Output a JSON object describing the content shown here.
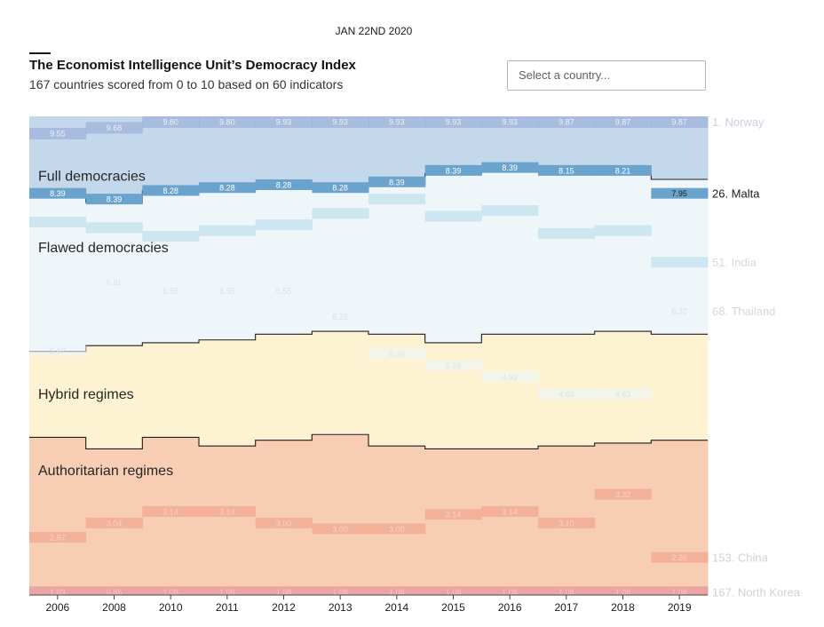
{
  "header": {
    "dateline": "JAN 22ND 2020",
    "title": "The Economist Intelligence Unit’s Democracy Index",
    "subtitle": "167 countries scored from 0 to 10 based on 60 indicators"
  },
  "country_select": {
    "placeholder": "Select a country..."
  },
  "chart_data": {
    "type": "area",
    "xlabel": "",
    "ylabel": "",
    "categories": [
      "2006",
      "2008",
      "2010",
      "2011",
      "2012",
      "2013",
      "2014",
      "2015",
      "2016",
      "2017",
      "2018",
      "2019"
    ],
    "n_countries": 167,
    "regimes": [
      {
        "name": "Full democracies",
        "color": "#c3d8ea",
        "ranks_in_category": [
          28,
          30,
          26,
          25,
          25,
          25,
          24,
          20,
          19,
          19,
          20,
          22
        ]
      },
      {
        "name": "Flawed democracies",
        "color": "#eef6fa",
        "ranks_in_category": [
          54,
          50,
          53,
          53,
          51,
          50,
          52,
          59,
          57,
          57,
          55,
          54
        ]
      },
      {
        "name": "Hybrid regimes",
        "color": "#fdf3d2",
        "ranks_in_category": [
          30,
          36,
          33,
          37,
          37,
          36,
          39,
          37,
          40,
          39,
          39,
          37
        ]
      },
      {
        "name": "Authoritarian regimes",
        "color": "#f7cdb3",
        "ranks_in_category": [
          55,
          51,
          55,
          52,
          54,
          56,
          52,
          51,
          51,
          52,
          53,
          54
        ]
      }
    ],
    "highlighted_countries": [
      {
        "label": "1. Norway",
        "values": [
          9.55,
          9.68,
          9.8,
          9.8,
          9.93,
          9.93,
          9.93,
          9.93,
          9.93,
          9.87,
          9.87,
          9.87
        ]
      },
      {
        "label": "26. Malta",
        "values": [
          8.39,
          8.39,
          8.28,
          8.28,
          8.28,
          8.28,
          8.39,
          8.39,
          8.39,
          8.15,
          8.21,
          7.95
        ]
      },
      {
        "label": "51. India",
        "values": [
          7.68,
          7.8,
          7.28,
          7.3,
          7.52,
          7.69,
          7.92,
          7.74,
          7.81,
          7.23,
          7.23,
          6.9
        ]
      },
      {
        "label": "68. Thailand",
        "values": [
          5.67,
          6.81,
          6.55,
          6.55,
          6.55,
          6.25,
          5.39,
          5.09,
          4.92,
          4.63,
          4.63,
          6.32
        ]
      },
      {
        "label": "153. China",
        "values": [
          2.97,
          3.04,
          3.14,
          3.14,
          3.0,
          3.0,
          3.0,
          3.14,
          3.14,
          3.1,
          3.32,
          2.26
        ]
      },
      {
        "label": "167. North Korea",
        "values": [
          1.03,
          0.86,
          1.08,
          1.08,
          1.08,
          1.08,
          1.08,
          1.08,
          1.08,
          1.08,
          1.08,
          1.08
        ]
      }
    ],
    "legend": "inline-right"
  }
}
